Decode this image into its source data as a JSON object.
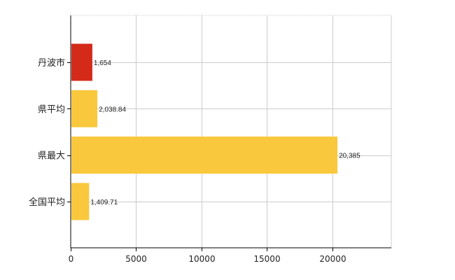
{
  "chart_data": {
    "type": "bar",
    "orientation": "horizontal",
    "categories": [
      "丹波市",
      "県平均",
      "県最大",
      "全国平均"
    ],
    "values": [
      1654,
      2038.84,
      20385,
      1409.71
    ],
    "value_labels": [
      "1,654",
      "2,038.84",
      "20,385",
      "1,409.71"
    ],
    "bar_colors": [
      "#D42A1A",
      "#F9C83D",
      "#F9C83D",
      "#F9C83D"
    ],
    "xlim": [
      0,
      24500
    ],
    "xticks": [
      0,
      5000,
      10000,
      15000,
      20000
    ],
    "xtick_labels": [
      "0",
      "5000",
      "10000",
      "15000",
      "20000"
    ],
    "grid": true,
    "legend": "none"
  }
}
